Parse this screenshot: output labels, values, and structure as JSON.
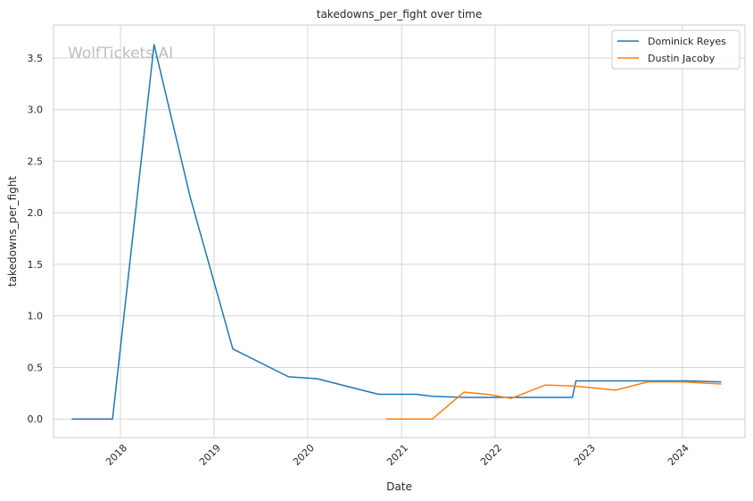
{
  "chart_data": {
    "type": "line",
    "title": "takedowns_per_fight over time",
    "xlabel": "Date",
    "ylabel": "takedowns_per_fight",
    "watermark": "WolfTickets.AI",
    "x_ticks": [
      "2018",
      "2019",
      "2020",
      "2021",
      "2022",
      "2023",
      "2024"
    ],
    "xlim": [
      "2017-04-15",
      "2024-09-01"
    ],
    "y_ticks": [
      "0.0",
      "0.5",
      "1.0",
      "1.5",
      "2.0",
      "2.5",
      "3.0",
      "3.5"
    ],
    "ylim": [
      -0.18,
      3.82
    ],
    "grid": true,
    "legend_position": "top-right",
    "series": [
      {
        "name": "Dominick Reyes",
        "color": "#1f77b4",
        "points": [
          [
            "2017-06-25",
            0.0
          ],
          [
            "2017-12-01",
            0.0
          ],
          [
            "2018-05-12",
            3.63
          ],
          [
            "2018-09-30",
            2.15
          ],
          [
            "2019-03-15",
            0.68
          ],
          [
            "2019-10-18",
            0.41
          ],
          [
            "2020-02-08",
            0.39
          ],
          [
            "2020-10-03",
            0.24
          ],
          [
            "2021-02-27",
            0.24
          ],
          [
            "2021-05-01",
            0.22
          ],
          [
            "2021-09-01",
            0.21
          ],
          [
            "2022-03-26",
            0.21
          ],
          [
            "2022-10-29",
            0.21
          ],
          [
            "2022-11-12",
            0.37
          ],
          [
            "2023-07-01",
            0.37
          ],
          [
            "2024-01-15",
            0.37
          ],
          [
            "2024-06-01",
            0.36
          ]
        ]
      },
      {
        "name": "Dustin Jacoby",
        "color": "#ff7f0e",
        "points": [
          [
            "2020-11-01",
            0.0
          ],
          [
            "2021-05-01",
            0.0
          ],
          [
            "2021-09-01",
            0.26
          ],
          [
            "2021-12-01",
            0.24
          ],
          [
            "2022-03-05",
            0.2
          ],
          [
            "2022-07-16",
            0.33
          ],
          [
            "2022-11-05",
            0.32
          ],
          [
            "2023-04-15",
            0.28
          ],
          [
            "2023-08-19",
            0.36
          ],
          [
            "2024-01-01",
            0.36
          ],
          [
            "2024-06-01",
            0.34
          ]
        ]
      }
    ]
  }
}
